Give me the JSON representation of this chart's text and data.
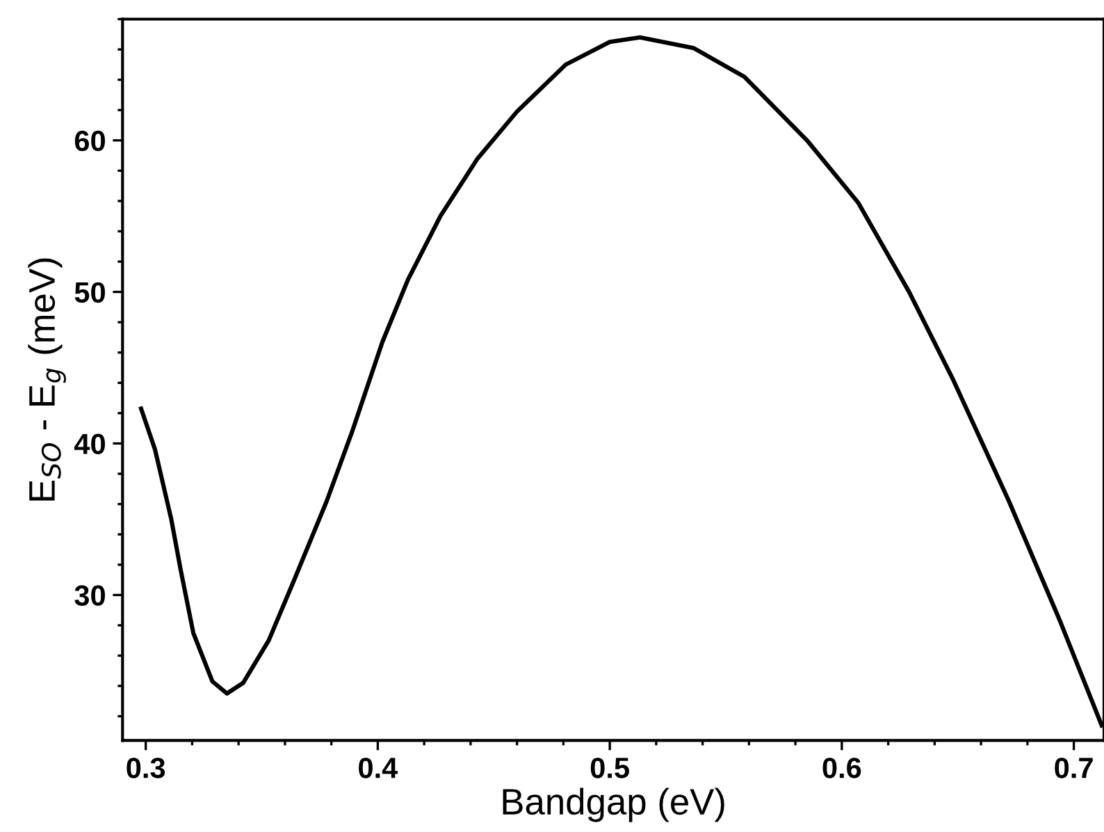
{
  "chart_data": {
    "type": "line",
    "xlabel": "Bandgap (eV)",
    "ylabel": "E$_{SO}$ - E$_{g}$ (meV)",
    "series": [
      {
        "color": "#000000",
        "x": [
          0.298,
          0.304,
          0.311,
          0.315,
          0.3205,
          0.3287,
          0.335,
          0.342,
          0.353,
          0.364,
          0.378,
          0.389,
          0.402,
          0.413,
          0.427,
          0.443,
          0.46,
          0.481,
          0.5,
          0.513,
          0.536,
          0.558,
          0.585,
          0.607,
          0.629,
          0.648,
          0.672,
          0.694,
          0.712
        ],
        "values": [
          42.3,
          39.6,
          35.0,
          31.7,
          27.5,
          24.3,
          23.5,
          24.2,
          27.0,
          31.0,
          36.2,
          40.8,
          46.7,
          50.8,
          55.0,
          58.8,
          61.9,
          65.0,
          66.5,
          66.8,
          66.1,
          64.2,
          60.0,
          55.9,
          50.0,
          44.2,
          36.2,
          28.3,
          21.4
        ]
      }
    ],
    "xlim": [
      0.29,
      0.713
    ],
    "ylim": [
      20.4,
      68.0
    ],
    "xticks": [
      0.3,
      0.4,
      0.5,
      0.6,
      0.7
    ],
    "yticks": [
      30,
      40,
      50,
      60
    ],
    "grid": false,
    "legend": false,
    "marker": "none",
    "line_style": "solid"
  }
}
